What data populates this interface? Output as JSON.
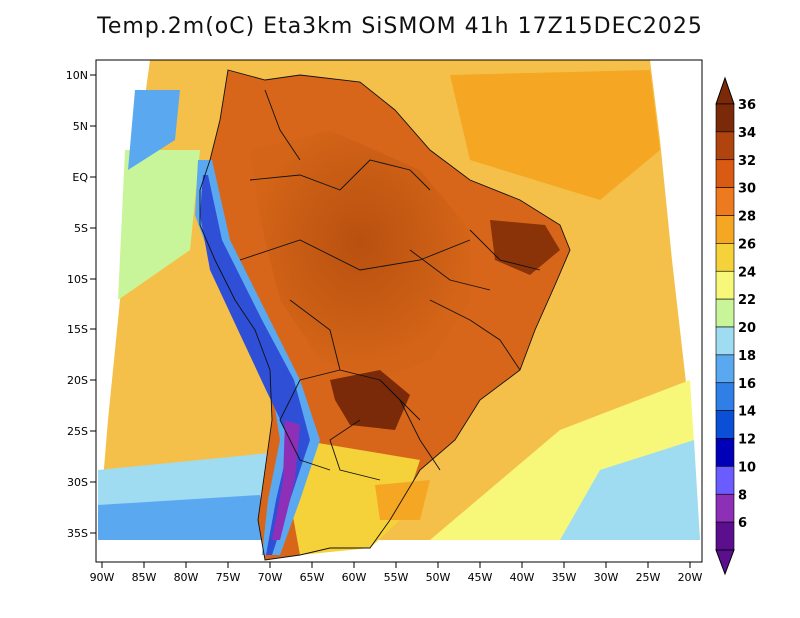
{
  "title": "Temp.2m(oC) Eta3km SiSMOM 41h 17Z15DEC2025",
  "chart_data": {
    "type": "heatmap",
    "title": "Temp.2m(oC) Eta3km SiSMOM 41h 17Z15DEC2025",
    "variable": "Temp.2m",
    "units": "oC",
    "lon_ticks": [
      "90W",
      "85W",
      "80W",
      "75W",
      "70W",
      "65W",
      "60W",
      "55W",
      "50W",
      "45W",
      "40W",
      "35W",
      "30W",
      "25W",
      "20W"
    ],
    "lat_ticks": [
      "10N",
      "5N",
      "EQ",
      "5S",
      "10S",
      "15S",
      "20S",
      "25S",
      "30S",
      "35S"
    ],
    "lon_range": [
      -91,
      -20
    ],
    "lat_range": [
      -38,
      11
    ],
    "colorbar": {
      "labels": [
        "6",
        "8",
        "10",
        "12",
        "14",
        "16",
        "18",
        "20",
        "22",
        "24",
        "26",
        "28",
        "30",
        "32",
        "34",
        "36"
      ],
      "colors": [
        "#5b0f8f",
        "#8e2fb7",
        "#6a5cff",
        "#0000b8",
        "#0a4fd6",
        "#2f7fe6",
        "#5aa9f0",
        "#9fdcf2",
        "#c9f59a",
        "#f7f77a",
        "#f5d23a",
        "#f5a623",
        "#ee7a1f",
        "#d95a12",
        "#b0440e",
        "#7a2a08"
      ]
    }
  }
}
